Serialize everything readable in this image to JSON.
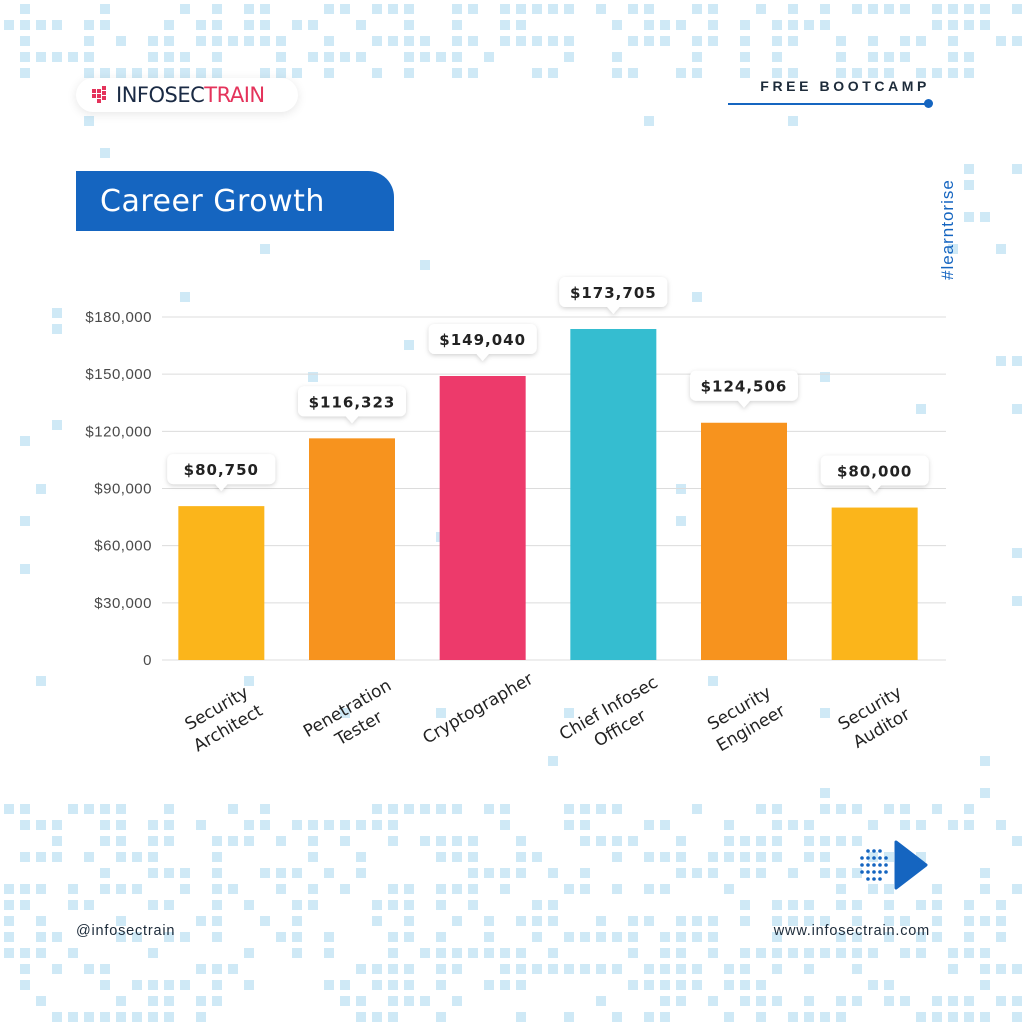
{
  "brand": {
    "part1": "INFOSEC",
    "part2": "TRAIN"
  },
  "header": {
    "bootcamp_label": "FREE BOOTCAMP",
    "hashtag": "#learntorise"
  },
  "footer": {
    "handle": "@infosectrain",
    "website": "www.infosectrain.com"
  },
  "colors": {
    "accent": "#1565c0",
    "brand_red": "#e4335b",
    "pixel_pattern": "#cfe9f6"
  },
  "icons": {
    "logo": "infosectrain-logo-icon",
    "next": "next-arrow-icon"
  },
  "chart_data": {
    "type": "bar",
    "title": "Career Growth",
    "categories": [
      "Security Architect",
      "Penetration Tester",
      "Cryptographer",
      "Chief Infosec Officer",
      "Security Engineer",
      "Security Auditor"
    ],
    "category_label_lines": [
      [
        "Security",
        "Architect"
      ],
      [
        "Penetration",
        "Tester"
      ],
      [
        "Cryptographer"
      ],
      [
        "Chief Infosec",
        "Officer"
      ],
      [
        "Security",
        "Engineer"
      ],
      [
        "Security",
        "Auditor"
      ]
    ],
    "values": [
      80750,
      116323,
      149040,
      173705,
      124506,
      80000
    ],
    "data_labels": [
      "$80,750",
      "$116,323",
      "$149,040",
      "$173,705",
      "$124,506",
      "$80,000"
    ],
    "bar_colors": [
      "#fbb51b",
      "#f7931e",
      "#ed3a6b",
      "#35bdd0",
      "#f7931e",
      "#fbb51b"
    ],
    "ylim": [
      0,
      180000
    ],
    "yticks": [
      0,
      30000,
      60000,
      90000,
      120000,
      150000,
      180000
    ],
    "ytick_labels": [
      "0",
      "$30,000",
      "$60,000",
      "$90,000",
      "$120,000",
      "$150,000",
      "$180,000"
    ],
    "xlabel": "",
    "ylabel": "",
    "grid": true,
    "legend": "none"
  }
}
